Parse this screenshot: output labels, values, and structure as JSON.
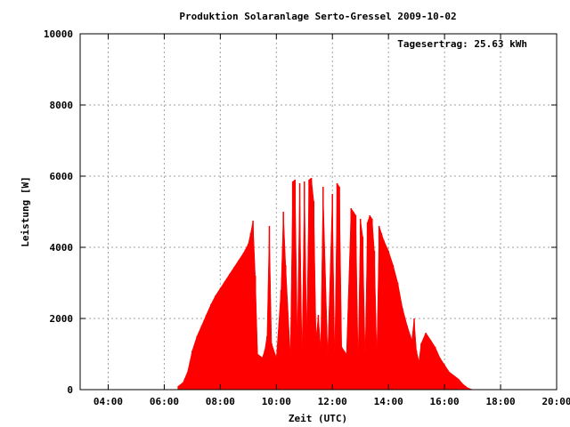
{
  "chart_data": {
    "type": "area",
    "title": "Produktion Solaranlage Serto-Gressel 2009-10-02",
    "xlabel": "Zeit (UTC)",
    "ylabel": "Leistung [W]",
    "annotation": "Tagesertrag: 25.63 kWh",
    "xlim": [
      "03:00",
      "20:00"
    ],
    "ylim": [
      0,
      10000
    ],
    "x_ticks": [
      "04:00",
      "06:00",
      "08:00",
      "10:00",
      "12:00",
      "14:00",
      "16:00",
      "18:00",
      "20:00"
    ],
    "y_ticks": [
      "0",
      "2000",
      "4000",
      "6000",
      "8000",
      "10000"
    ],
    "grid": true,
    "series_color": "#ff0000",
    "x": [
      "06:30",
      "06:40",
      "06:50",
      "07:00",
      "07:10",
      "07:20",
      "07:30",
      "07:40",
      "07:50",
      "08:00",
      "08:10",
      "08:20",
      "08:30",
      "08:40",
      "08:50",
      "09:00",
      "09:05",
      "09:10",
      "09:15",
      "09:20",
      "09:30",
      "09:35",
      "09:40",
      "09:45",
      "09:50",
      "10:00",
      "10:10",
      "10:15",
      "10:20",
      "10:30",
      "10:35",
      "10:40",
      "10:45",
      "10:50",
      "10:55",
      "11:00",
      "11:05",
      "11:10",
      "11:15",
      "11:20",
      "11:25",
      "11:30",
      "11:35",
      "11:40",
      "11:50",
      "12:00",
      "12:05",
      "12:10",
      "12:15",
      "12:20",
      "12:30",
      "12:40",
      "12:45",
      "12:50",
      "12:55",
      "13:00",
      "13:05",
      "13:10",
      "13:15",
      "13:20",
      "13:25",
      "13:30",
      "13:35",
      "13:40",
      "13:45",
      "13:50",
      "14:00",
      "14:10",
      "14:20",
      "14:30",
      "14:40",
      "14:50",
      "14:55",
      "15:00",
      "15:05",
      "15:10",
      "15:20",
      "15:30",
      "15:40",
      "15:50",
      "16:00",
      "16:10",
      "16:20",
      "16:30",
      "16:40",
      "16:50",
      "17:00"
    ],
    "y": [
      100,
      200,
      500,
      1100,
      1500,
      1800,
      2100,
      2400,
      2650,
      2850,
      3050,
      3250,
      3450,
      3650,
      3850,
      4100,
      4400,
      4750,
      3200,
      1000,
      900,
      1100,
      1500,
      4600,
      1300,
      900,
      2800,
      5000,
      3500,
      1000,
      5850,
      5900,
      1500,
      5800,
      1000,
      5850,
      1600,
      5900,
      5950,
      5300,
      1500,
      2100,
      1200,
      5700,
      1000,
      5500,
      1000,
      5800,
      5700,
      1200,
      1000,
      5100,
      5000,
      4900,
      900,
      4800,
      4300,
      1000,
      4700,
      4900,
      4800,
      3900,
      1000,
      4600,
      4400,
      4200,
      3900,
      3500,
      3000,
      2300,
      1800,
      1400,
      2000,
      1100,
      800,
      1300,
      1600,
      1400,
      1200,
      900,
      700,
      500,
      400,
      300,
      150,
      50,
      0
    ]
  }
}
